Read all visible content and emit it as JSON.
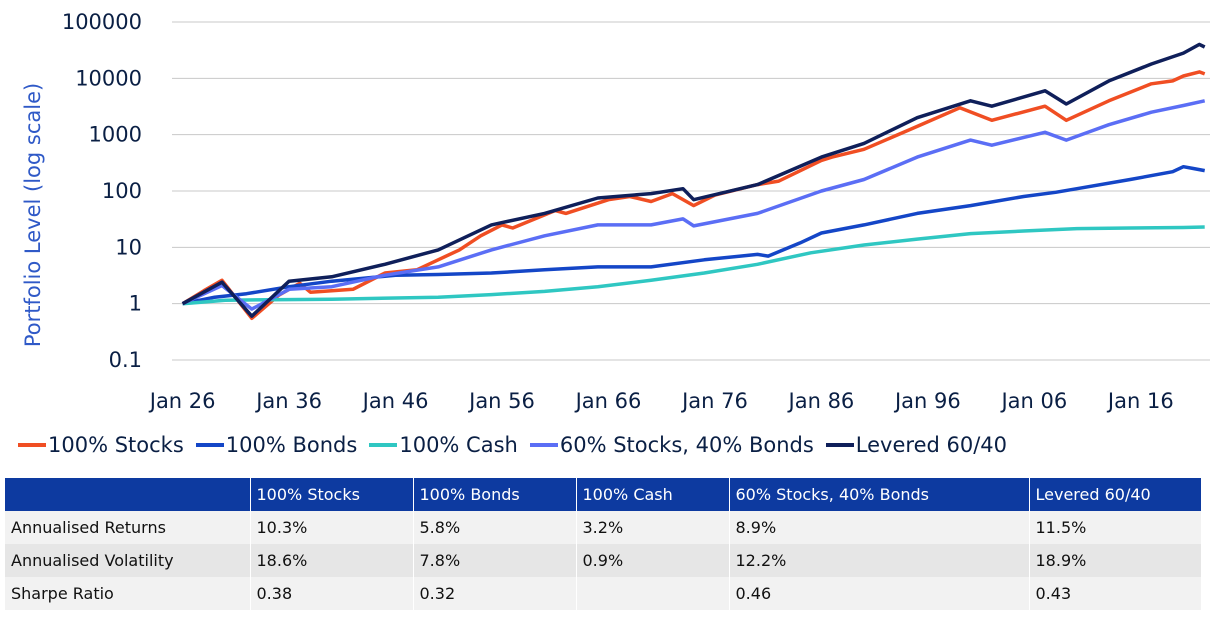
{
  "chart_data": {
    "type": "line",
    "yscale": "log",
    "ylabel": "Portfolio Level (log scale)",
    "xlabel": "",
    "ylim": [
      0.1,
      100000
    ],
    "yticks": [
      "100000",
      "10000",
      "1000",
      "100",
      "10",
      "1",
      "0.1"
    ],
    "xticks": [
      "Jan 26",
      "Jan 36",
      "Jan 46",
      "Jan 56",
      "Jan 66",
      "Jan 76",
      "Jan 86",
      "Jan 96",
      "Jan 06",
      "Jan 16"
    ],
    "xtick_years": [
      1926,
      1936,
      1946,
      1956,
      1966,
      1976,
      1986,
      1996,
      2006,
      2016
    ],
    "xlim": [
      1925,
      2022.5
    ],
    "grid": true,
    "legend_position": "bottom",
    "series": [
      {
        "name": "100% Stocks",
        "color": "#f04e23",
        "points": [
          [
            1926,
            1
          ],
          [
            1928,
            1.7
          ],
          [
            1929.7,
            2.6
          ],
          [
            1932.5,
            0.55
          ],
          [
            1935,
            1.4
          ],
          [
            1937,
            2.3
          ],
          [
            1938,
            1.6
          ],
          [
            1942,
            1.8
          ],
          [
            1945,
            3.5
          ],
          [
            1948,
            4
          ],
          [
            1950,
            6
          ],
          [
            1952,
            9
          ],
          [
            1954,
            16
          ],
          [
            1956,
            25
          ],
          [
            1957,
            22
          ],
          [
            1961,
            45
          ],
          [
            1962,
            40
          ],
          [
            1966,
            70
          ],
          [
            1968,
            80
          ],
          [
            1970,
            65
          ],
          [
            1972,
            90
          ],
          [
            1974,
            55
          ],
          [
            1976,
            85
          ],
          [
            1980,
            130
          ],
          [
            1982,
            150
          ],
          [
            1986,
            350
          ],
          [
            1987,
            400
          ],
          [
            1990,
            550
          ],
          [
            1995,
            1400
          ],
          [
            1999,
            3000
          ],
          [
            2002,
            1800
          ],
          [
            2007,
            3200
          ],
          [
            2009,
            1800
          ],
          [
            2013,
            4000
          ],
          [
            2017,
            8000
          ],
          [
            2019,
            9000
          ],
          [
            2020,
            11000
          ],
          [
            2021.5,
            13000
          ],
          [
            2022,
            12000
          ]
        ]
      },
      {
        "name": "100% Bonds",
        "color": "#1446c7",
        "points": [
          [
            1926,
            1
          ],
          [
            1929,
            1.3
          ],
          [
            1932,
            1.5
          ],
          [
            1936,
            2
          ],
          [
            1940,
            2.5
          ],
          [
            1946,
            3.2
          ],
          [
            1950,
            3.3
          ],
          [
            1955,
            3.5
          ],
          [
            1960,
            4
          ],
          [
            1965,
            4.5
          ],
          [
            1970,
            4.5
          ],
          [
            1975,
            6
          ],
          [
            1980,
            7.5
          ],
          [
            1981,
            7
          ],
          [
            1984,
            12
          ],
          [
            1986,
            18
          ],
          [
            1990,
            25
          ],
          [
            1995,
            40
          ],
          [
            2000,
            55
          ],
          [
            2005,
            80
          ],
          [
            2008,
            95
          ],
          [
            2010,
            110
          ],
          [
            2015,
            160
          ],
          [
            2019,
            220
          ],
          [
            2020,
            270
          ],
          [
            2021,
            250
          ],
          [
            2022,
            230
          ]
        ]
      },
      {
        "name": "100% Cash",
        "color": "#2fc7c2",
        "points": [
          [
            1926,
            1
          ],
          [
            1930,
            1.15
          ],
          [
            1940,
            1.2
          ],
          [
            1950,
            1.3
          ],
          [
            1955,
            1.45
          ],
          [
            1960,
            1.65
          ],
          [
            1965,
            2
          ],
          [
            1970,
            2.6
          ],
          [
            1975,
            3.5
          ],
          [
            1980,
            5
          ],
          [
            1985,
            8
          ],
          [
            1990,
            11
          ],
          [
            1995,
            14
          ],
          [
            2000,
            17.5
          ],
          [
            2005,
            19.5
          ],
          [
            2010,
            21.5
          ],
          [
            2015,
            22
          ],
          [
            2020,
            22.5
          ],
          [
            2022,
            23
          ]
        ]
      },
      {
        "name": "60% Stocks, 40% Bonds",
        "color": "#5b6ef5",
        "points": [
          [
            1926,
            1
          ],
          [
            1929.7,
            2.1
          ],
          [
            1932.5,
            0.8
          ],
          [
            1936,
            1.8
          ],
          [
            1940,
            2
          ],
          [
            1945,
            3.2
          ],
          [
            1950,
            4.5
          ],
          [
            1955,
            9
          ],
          [
            1960,
            16
          ],
          [
            1965,
            25
          ],
          [
            1970,
            25
          ],
          [
            1973,
            32
          ],
          [
            1974,
            24
          ],
          [
            1980,
            40
          ],
          [
            1986,
            100
          ],
          [
            1990,
            160
          ],
          [
            1995,
            400
          ],
          [
            2000,
            800
          ],
          [
            2002,
            650
          ],
          [
            2007,
            1100
          ],
          [
            2009,
            800
          ],
          [
            2013,
            1500
          ],
          [
            2017,
            2500
          ],
          [
            2020,
            3300
          ],
          [
            2022,
            4000
          ]
        ]
      },
      {
        "name": "Levered 60/40",
        "color": "#0f1f5a",
        "points": [
          [
            1926,
            1
          ],
          [
            1929.7,
            2.4
          ],
          [
            1932.5,
            0.6
          ],
          [
            1936,
            2.5
          ],
          [
            1940,
            3
          ],
          [
            1945,
            5
          ],
          [
            1950,
            9
          ],
          [
            1955,
            25
          ],
          [
            1960,
            40
          ],
          [
            1965,
            75
          ],
          [
            1970,
            90
          ],
          [
            1973,
            110
          ],
          [
            1974,
            70
          ],
          [
            1980,
            130
          ],
          [
            1986,
            400
          ],
          [
            1990,
            700
          ],
          [
            1995,
            2000
          ],
          [
            2000,
            4000
          ],
          [
            2002,
            3200
          ],
          [
            2007,
            6000
          ],
          [
            2009,
            3500
          ],
          [
            2013,
            9000
          ],
          [
            2017,
            18000
          ],
          [
            2020,
            28000
          ],
          [
            2021.5,
            40000
          ],
          [
            2022,
            36000
          ]
        ]
      }
    ]
  },
  "table": {
    "headers": [
      "",
      "100% Stocks",
      "100% Bonds",
      "100% Cash",
      "60% Stocks, 40% Bonds",
      "Levered 60/40"
    ],
    "rows": [
      [
        "Annualised Returns",
        "10.3%",
        "5.8%",
        "3.2%",
        "8.9%",
        "11.5%"
      ],
      [
        "Annualised Volatility",
        "18.6%",
        "7.8%",
        "0.9%",
        "12.2%",
        "18.9%"
      ],
      [
        "Sharpe Ratio",
        "0.38",
        "0.32",
        "",
        "0.46",
        "0.43"
      ]
    ]
  }
}
